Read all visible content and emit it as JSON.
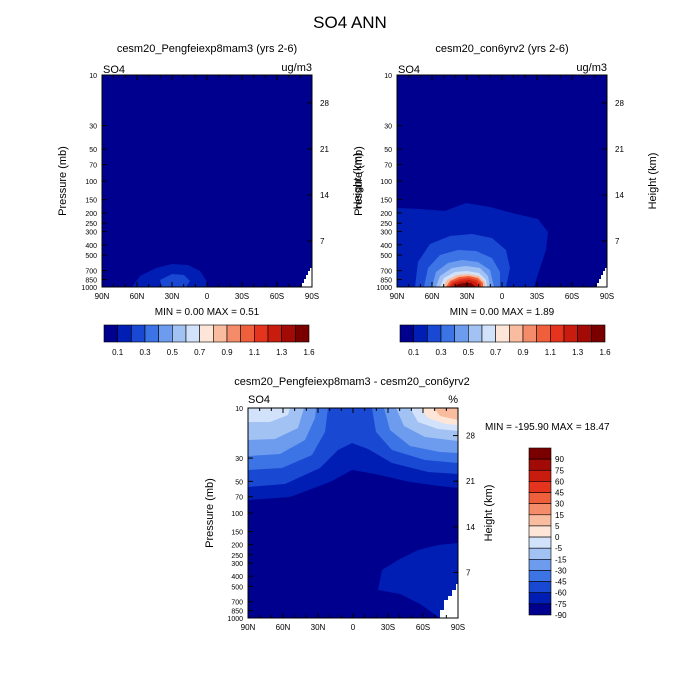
{
  "title": "SO4 ANN",
  "panels": [
    {
      "title": "cesm20_Pengfeiexp8mam3 (yrs 2-6)",
      "var_label": "SO4",
      "units": "ug/m3",
      "ylabel": "Pressure (mb)",
      "ylabel_right": "Height (km)",
      "minmax": "MIN =   0.00   MAX =   0.51"
    },
    {
      "title": "cesm20_con6yrv2 (yrs 2-6)",
      "var_label": "SO4",
      "units": "ug/m3",
      "ylabel": "Pressure (mb)",
      "ylabel_right": "Height (km)",
      "minmax": "MIN =   0.00   MAX =   1.89"
    },
    {
      "title": "cesm20_Pengfeiexp8mam3 - cesm20_con6yrv2",
      "var_label": "SO4",
      "units": "%",
      "ylabel": "Pressure (mb)",
      "ylabel_right": "Height (km)",
      "minmax": "MIN = -195.90   MAX =  18.47"
    }
  ],
  "axes": {
    "x_ticks": [
      "90N",
      "60N",
      "30N",
      "0",
      "30S",
      "60S",
      "90S"
    ],
    "p_ticks": [
      "10",
      "30",
      "50",
      "70",
      "100",
      "150",
      "200",
      "250",
      "300",
      "400",
      "500",
      "700",
      "850",
      "1000"
    ],
    "h_ticks": [
      "28",
      "21",
      "14",
      "7"
    ]
  },
  "colorbars": {
    "abs_labels": [
      "0.1",
      "0.3",
      "0.5",
      "0.7",
      "0.9",
      "1.1",
      "1.3",
      "1.6"
    ],
    "abs_colors": [
      "#00008f",
      "#001eb4",
      "#1948d2",
      "#3c74e6",
      "#6d9cef",
      "#a2c2f4",
      "#d2e2fa",
      "#fde6d8",
      "#f9bc9e",
      "#f58c69",
      "#ef5f3b",
      "#e5341d",
      "#c81c0e",
      "#a10a05",
      "#7a0000"
    ],
    "diff_labels": [
      "90",
      "75",
      "60",
      "45",
      "30",
      "15",
      "5",
      "0",
      "-5",
      "-15",
      "-30",
      "-45",
      "-60",
      "-75",
      "-90"
    ],
    "diff_colors": [
      "#7a0000",
      "#a10a05",
      "#c81c0e",
      "#e5341d",
      "#ef5f3b",
      "#f58c69",
      "#f9bc9e",
      "#fde6d8",
      "#d2e2fa",
      "#a2c2f4",
      "#6d9cef",
      "#3c74e6",
      "#1948d2",
      "#001eb4",
      "#00008f"
    ]
  },
  "chart_data": [
    {
      "type": "heatmap",
      "title": "cesm20_Pengfeiexp8mam3 (yrs 2-6)",
      "xlabel": "",
      "ylabel": "Pressure (mb)",
      "ylabel_right": "Height (km)",
      "x_ticks": [
        "90N",
        "60N",
        "30N",
        "0",
        "30S",
        "60S",
        "90S"
      ],
      "y_range_mb": [
        1000,
        10
      ],
      "y_scale": "log",
      "min": 0.0,
      "max": 0.51,
      "units": "ug/m3"
    },
    {
      "type": "heatmap",
      "title": "cesm20_con6yrv2 (yrs 2-6)",
      "xlabel": "",
      "ylabel": "Pressure (mb)",
      "ylabel_right": "Height (km)",
      "x_ticks": [
        "90N",
        "60N",
        "30N",
        "0",
        "30S",
        "60S",
        "90S"
      ],
      "y_range_mb": [
        1000,
        10
      ],
      "y_scale": "log",
      "min": 0.0,
      "max": 1.89,
      "units": "ug/m3"
    },
    {
      "type": "heatmap",
      "title": "cesm20_Pengfeiexp8mam3 - cesm20_con6yrv2",
      "xlabel": "",
      "ylabel": "Pressure (mb)",
      "ylabel_right": "Height (km)",
      "x_ticks": [
        "90N",
        "60N",
        "30N",
        "0",
        "30S",
        "60S",
        "90S"
      ],
      "y_range_mb": [
        1000,
        10
      ],
      "y_scale": "log",
      "min": -195.9,
      "max": 18.47,
      "units": "%"
    }
  ]
}
